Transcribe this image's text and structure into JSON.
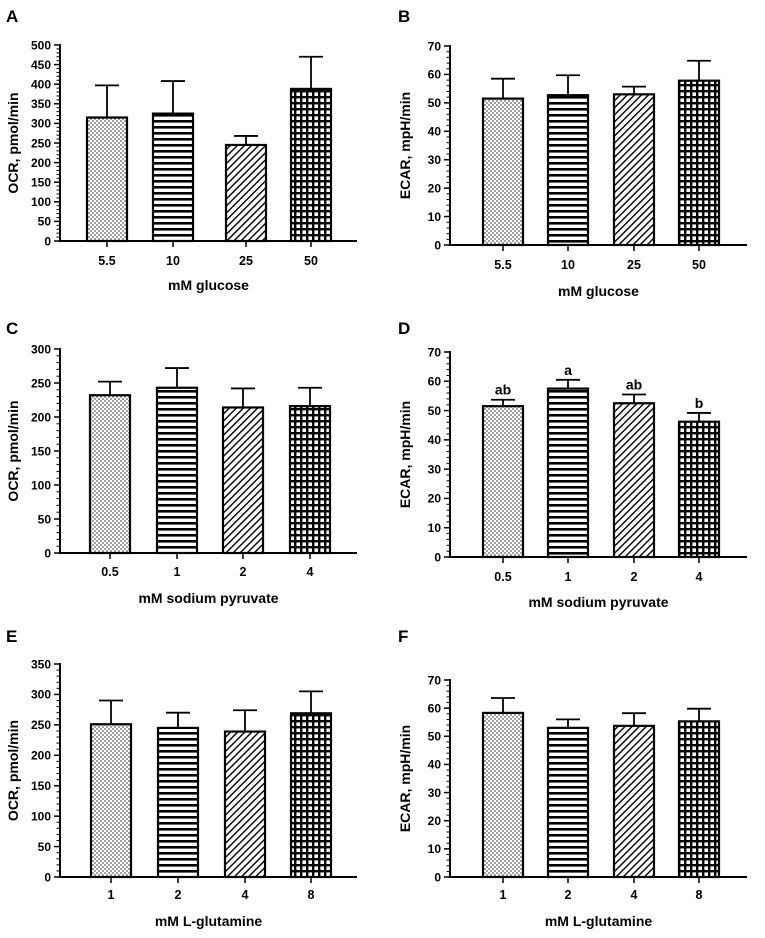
{
  "chart_data": [
    {
      "panel": "A",
      "type": "bar",
      "title": "",
      "xlabel": "mM glucose",
      "ylabel": "OCR, pmol/min",
      "categories": [
        "5.5",
        "10",
        "25",
        "50"
      ],
      "values": [
        315,
        325,
        245,
        388
      ],
      "errors": [
        82,
        83,
        23,
        82
      ],
      "patterns": [
        "dots",
        "hlines",
        "diag",
        "grid"
      ],
      "annotations": [
        "",
        "",
        "",
        ""
      ],
      "ylim": [
        0,
        500
      ],
      "yticks": [
        "0",
        "50",
        "100",
        "150",
        "200",
        "250",
        "300",
        "350",
        "400",
        "450",
        "500"
      ],
      "grid": false
    },
    {
      "panel": "B",
      "type": "bar",
      "title": "",
      "xlabel": "mM glucose",
      "ylabel": "ECAR, mpH/min",
      "categories": [
        "5.5",
        "10",
        "25",
        "50"
      ],
      "values": [
        51.5,
        52.7,
        53,
        57.8
      ],
      "errors": [
        7,
        7,
        2.7,
        7
      ],
      "patterns": [
        "dots",
        "hlines",
        "diag",
        "grid"
      ],
      "annotations": [
        "",
        "",
        "",
        ""
      ],
      "ylim": [
        0,
        70
      ],
      "yticks": [
        "0",
        "10",
        "20",
        "30",
        "40",
        "50",
        "60",
        "70"
      ],
      "grid": false
    },
    {
      "panel": "C",
      "type": "bar",
      "title": "",
      "xlabel": "mM sodium pyruvate",
      "ylabel": "OCR, pmol/min",
      "categories": [
        "0.5",
        "1",
        "2",
        "4"
      ],
      "values": [
        232,
        243,
        214,
        216
      ],
      "errors": [
        20,
        29,
        28,
        27
      ],
      "patterns": [
        "dots",
        "hlines",
        "diag",
        "grid"
      ],
      "annotations": [
        "",
        "",
        "",
        ""
      ],
      "ylim": [
        0,
        300
      ],
      "yticks": [
        "0",
        "50",
        "100",
        "150",
        "200",
        "250",
        "300"
      ],
      "grid": false
    },
    {
      "panel": "D",
      "type": "bar",
      "title": "",
      "xlabel": "mM sodium pyruvate",
      "ylabel": "ECAR, mpH/min",
      "categories": [
        "0.5",
        "1",
        "2",
        "4"
      ],
      "values": [
        51.5,
        57.5,
        52.5,
        46.2
      ],
      "errors": [
        2.2,
        3,
        3,
        3
      ],
      "patterns": [
        "dots",
        "hlines",
        "diag",
        "grid"
      ],
      "annotations": [
        "ab",
        "a",
        "ab",
        "b"
      ],
      "ylim": [
        0,
        70
      ],
      "yticks": [
        "0",
        "10",
        "20",
        "30",
        "40",
        "50",
        "60",
        "70"
      ],
      "grid": false
    },
    {
      "panel": "E",
      "type": "bar",
      "title": "",
      "xlabel": "mM L-glutamine",
      "ylabel": "OCR, pmol/min",
      "categories": [
        "1",
        "2",
        "4",
        "8"
      ],
      "values": [
        251,
        245,
        239,
        269
      ],
      "errors": [
        39,
        25,
        35,
        36
      ],
      "patterns": [
        "dots",
        "hlines",
        "diag",
        "grid"
      ],
      "annotations": [
        "",
        "",
        "",
        ""
      ],
      "ylim": [
        0,
        350
      ],
      "yticks": [
        "0",
        "50",
        "100",
        "150",
        "200",
        "250",
        "300",
        "350"
      ],
      "grid": false
    },
    {
      "panel": "F",
      "type": "bar",
      "title": "",
      "xlabel": "mM L-glutamine",
      "ylabel": "ECAR, mpH/min",
      "categories": [
        "1",
        "2",
        "4",
        "8"
      ],
      "values": [
        58.3,
        53,
        53.7,
        55.3
      ],
      "errors": [
        5.3,
        3,
        4.5,
        4.5
      ],
      "patterns": [
        "dots",
        "hlines",
        "diag",
        "grid"
      ],
      "annotations": [
        "",
        "",
        "",
        ""
      ],
      "ylim": [
        0,
        70
      ],
      "yticks": [
        "0",
        "10",
        "20",
        "30",
        "40",
        "50",
        "60",
        "70"
      ],
      "grid": false
    }
  ]
}
